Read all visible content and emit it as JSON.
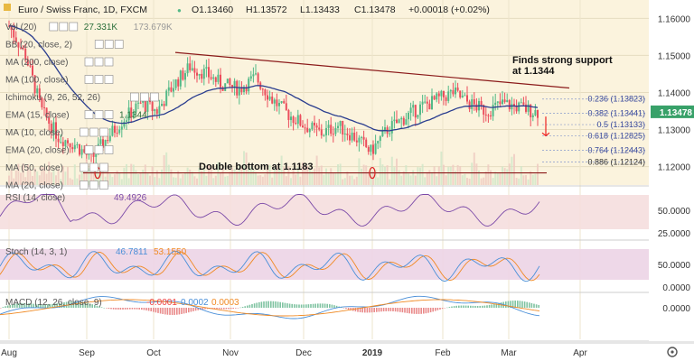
{
  "header": {
    "symbol": "Euro / Swiss Franc, 1D, FXCM",
    "open": "O1.13460",
    "high": "H1.13572",
    "low": "L1.13433",
    "close": "C1.13478",
    "change": "+0.00018 (+0.02%)"
  },
  "indicators": [
    {
      "label": "Vol (20)",
      "values": [
        "27.331K",
        "173.679K"
      ]
    },
    {
      "label": "BB (20, close, 2)",
      "values": []
    },
    {
      "label": "MA (200, close)",
      "values": []
    },
    {
      "label": "MA (100, close)",
      "values": []
    },
    {
      "label": "Ichimoku (9, 26, 52, 26)",
      "values": []
    },
    {
      "label": "EMA (15, close)",
      "values": [
        "1.1344"
      ]
    },
    {
      "label": "MA (10, close)",
      "values": []
    },
    {
      "label": "EMA (20, close)",
      "values": []
    },
    {
      "label": "MA (50, close)",
      "values": []
    },
    {
      "label": "MA (20, close)",
      "values": []
    }
  ],
  "annotations": {
    "support_line1": "Finds strong support",
    "support_line2": "at 1.1344",
    "double_bottom": "Double bottom at 1.1183"
  },
  "fib_levels": [
    {
      "ratio": "0.236",
      "price": "(1.13823)",
      "color": "#3a4a9c"
    },
    {
      "ratio": "0.382",
      "price": "(1.13441)",
      "color": "#3a4a9c"
    },
    {
      "ratio": "0.5",
      "price": "(1.13133)",
      "color": "#3a4a9c"
    },
    {
      "ratio": "0.618",
      "price": "(1.12825)",
      "color": "#3a4a9c"
    },
    {
      "ratio": "0.764",
      "price": "(1.12443)",
      "color": "#3a4a9c"
    },
    {
      "ratio": "0.886",
      "price": "(1.12124)",
      "color": "#333333"
    }
  ],
  "current_price_label": "1.13478",
  "rsi": {
    "label": "RSI (14, close)",
    "value": "49.4926"
  },
  "stoch": {
    "label": "Stoch (14, 3, 1)",
    "k": "46.7811",
    "d": "53.1550"
  },
  "macd": {
    "label": "MACD (12, 26, close, 9)",
    "hist": "-0.0001",
    "macd": "0.0002",
    "signal": "0.0003"
  },
  "x_axis": [
    "Aug",
    "Sep",
    "Oct",
    "Nov",
    "Dec",
    "2019",
    "Feb",
    "Mar",
    "Apr"
  ],
  "colors": {
    "up": "#53b987",
    "down": "#eb4d5c",
    "ema": "#2a3d8f",
    "trend": "#8b1a1a",
    "rsi": "#7b4aa8",
    "stoch_k": "#4a8fd8",
    "stoch_d": "#f08a24",
    "panel_main": "#fbf3dd",
    "panel_rsi": "#f5dede",
    "panel_stoch": "#ecd4e6"
  },
  "chart_data": {
    "type": "candlestick",
    "title": "Euro / Swiss Franc, 1D, FXCM",
    "ylim": [
      1.116,
      1.163
    ],
    "y_ticks": [
      "1.16000",
      "1.15000",
      "1.14000",
      "1.13000",
      "1.12000"
    ],
    "approx_close_path": [
      [
        "2018-08-01",
        1.158
      ],
      [
        "2018-08-08",
        1.15
      ],
      [
        "2018-08-15",
        1.135
      ],
      [
        "2018-08-22",
        1.128
      ],
      [
        "2018-08-29",
        1.126
      ],
      [
        "2018-09-05",
        1.122
      ],
      [
        "2018-09-12",
        1.128
      ],
      [
        "2018-09-19",
        1.133
      ],
      [
        "2018-09-26",
        1.137
      ],
      [
        "2018-10-03",
        1.135
      ],
      [
        "2018-10-10",
        1.142
      ],
      [
        "2018-10-17",
        1.147
      ],
      [
        "2018-10-24",
        1.145
      ],
      [
        "2018-10-31",
        1.142
      ],
      [
        "2018-11-07",
        1.141
      ],
      [
        "2018-11-14",
        1.144
      ],
      [
        "2018-11-21",
        1.138
      ],
      [
        "2018-11-28",
        1.134
      ],
      [
        "2018-12-05",
        1.131
      ],
      [
        "2018-12-12",
        1.129
      ],
      [
        "2018-12-19",
        1.131
      ],
      [
        "2018-12-26",
        1.128
      ],
      [
        "2019-01-02",
        1.124
      ],
      [
        "2019-01-09",
        1.13
      ],
      [
        "2019-01-16",
        1.133
      ],
      [
        "2019-01-23",
        1.136
      ],
      [
        "2019-01-30",
        1.138
      ],
      [
        "2019-02-06",
        1.14
      ],
      [
        "2019-02-13",
        1.137
      ],
      [
        "2019-02-20",
        1.135
      ],
      [
        "2019-02-27",
        1.137
      ],
      [
        "2019-03-06",
        1.136
      ],
      [
        "2019-03-13",
        1.1348
      ]
    ]
  }
}
